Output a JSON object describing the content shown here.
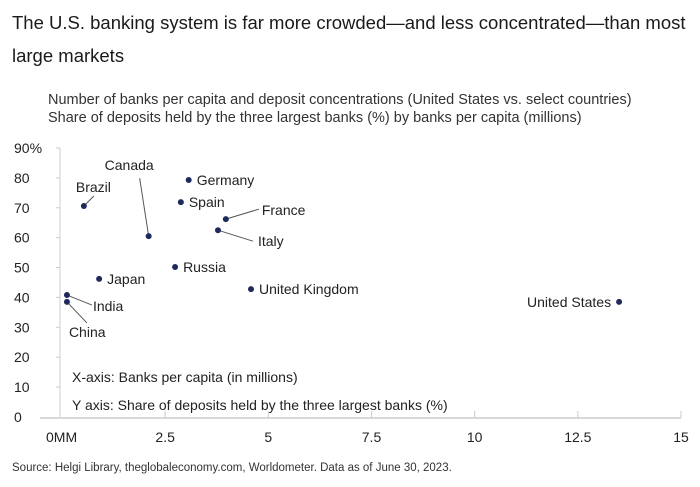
{
  "title": "The U.S. banking system is far more crowded—and less concentrated—than most large markets",
  "subtitle_1": "Number of banks per capita and deposit concentrations (United States vs. select countries)",
  "subtitle_2": "Share of deposits held by the three largest banks (%) by banks per capita (millions)",
  "source": "Source: Helgi Library, theglobaleconomy.com, Worldometer. Data as of June 30, 2023.",
  "colors": {
    "point": "#1f2a5c",
    "axis": "#cccccc",
    "leader": "#555555"
  },
  "chart_data": {
    "type": "scatter",
    "xlabel": "X-axis: Banks per capita (in millions)",
    "ylabel": "Y axis: Share of deposits held by the three largest banks (%)",
    "xlim": [
      0,
      15
    ],
    "ylim": [
      0,
      90
    ],
    "x_ticks": [
      "0MM",
      "2.5",
      "5",
      "7.5",
      "10",
      "12.5",
      "15"
    ],
    "y_ticks": [
      "0",
      "10",
      "20",
      "30",
      "40",
      "50",
      "60",
      "70",
      "80",
      "90%"
    ],
    "points": [
      {
        "name": "Brazil",
        "x": 0.53,
        "y": 70.6
      },
      {
        "name": "Canada",
        "x": 2.1,
        "y": 60.5
      },
      {
        "name": "Germany",
        "x": 3.07,
        "y": 79.3
      },
      {
        "name": "Spain",
        "x": 2.88,
        "y": 71.9
      },
      {
        "name": "France",
        "x": 3.97,
        "y": 66.2
      },
      {
        "name": "Italy",
        "x": 3.78,
        "y": 62.5
      },
      {
        "name": "Russia",
        "x": 2.74,
        "y": 50.2
      },
      {
        "name": "Japan",
        "x": 0.9,
        "y": 46.2
      },
      {
        "name": "United Kingdom",
        "x": 4.58,
        "y": 42.8
      },
      {
        "name": "India",
        "x": 0.12,
        "y": 40.8
      },
      {
        "name": "China",
        "x": 0.12,
        "y": 38.5
      },
      {
        "name": "United States",
        "x": 13.5,
        "y": 38.5
      }
    ]
  }
}
